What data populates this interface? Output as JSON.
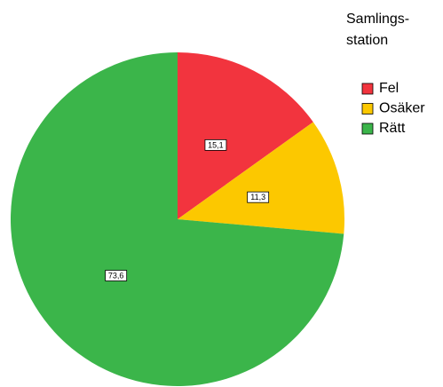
{
  "chart_data": {
    "type": "pie",
    "legend_title": [
      "Samlings-",
      "station"
    ],
    "categories": [
      "Fel",
      "Osäker",
      "Rätt"
    ],
    "values": [
      15.1,
      11.3,
      73.6
    ],
    "value_labels": [
      "15,1",
      "11,3",
      "73,6"
    ],
    "colors": [
      "#f2343e",
      "#fcc800",
      "#3bb54a"
    ],
    "legend": "top-right"
  }
}
